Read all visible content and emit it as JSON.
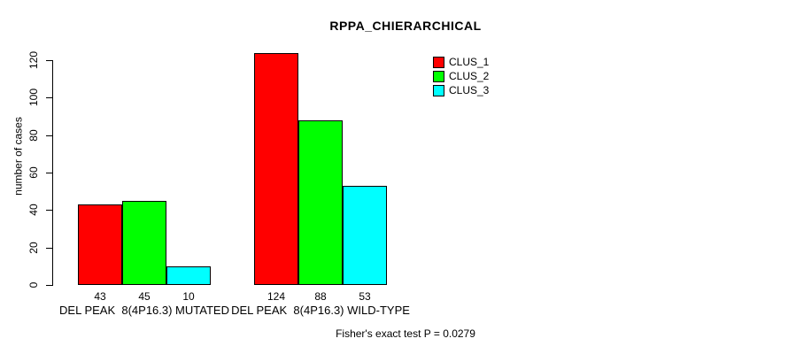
{
  "chart_data": {
    "type": "bar",
    "title": "RPPA_CHIERARCHICAL",
    "xlabel": "",
    "ylabel": "number of cases",
    "ylim": [
      0,
      120
    ],
    "yticks": [
      0,
      20,
      40,
      60,
      80,
      100,
      120
    ],
    "grid": false,
    "legend_position": "top-right",
    "bar_border_color": "#000000",
    "categories": [
      "DEL PEAK  8(4P16.3) MUTATED",
      "DEL PEAK  8(4P16.3) WILD-TYPE"
    ],
    "series": [
      {
        "name": "CLUS_1",
        "color": "#ff0000",
        "values": [
          43,
          124
        ]
      },
      {
        "name": "CLUS_2",
        "color": "#00ff00",
        "values": [
          45,
          88
        ]
      },
      {
        "name": "CLUS_3",
        "color": "#00ffff",
        "values": [
          10,
          53
        ]
      }
    ],
    "bar_value_labels": [
      [
        "43",
        "45",
        "10"
      ],
      [
        "124",
        "88",
        "53"
      ]
    ],
    "annotation": "Fisher's exact test P = 0.0279"
  }
}
